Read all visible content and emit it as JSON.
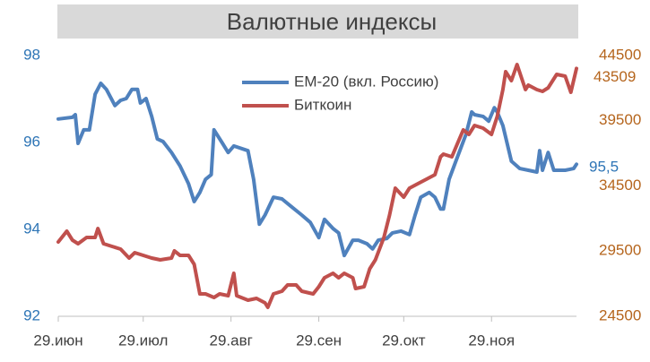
{
  "chart_data": {
    "type": "line",
    "title": "Валютные индексы",
    "xlim": [
      0,
      183
    ],
    "xticks": [
      {
        "value": 0,
        "label": "29.июн"
      },
      {
        "value": 30,
        "label": "29.июл"
      },
      {
        "value": 61,
        "label": "29.авг"
      },
      {
        "value": 92,
        "label": "29.сен"
      },
      {
        "value": 122,
        "label": "29.окт"
      },
      {
        "value": 153,
        "label": "29.ноя"
      }
    ],
    "ylim": [
      92,
      98
    ],
    "yticks": [
      92,
      94,
      96,
      98
    ],
    "y2lim": [
      24500,
      44500
    ],
    "y2ticks": [
      24500,
      29500,
      34500,
      39500,
      44500
    ],
    "grid": false,
    "legend": "top",
    "series": [
      {
        "name": "EM-20 (вкл. Россию)",
        "color": "#4f81bd",
        "end_label": "95,5",
        "x": [
          0,
          5,
          6,
          7,
          9,
          11,
          13,
          15,
          17,
          20,
          22,
          24,
          26,
          28,
          29,
          31,
          33,
          35,
          37,
          40,
          43,
          46,
          48,
          50,
          52,
          54,
          55,
          58,
          60,
          62,
          67,
          69,
          71,
          73,
          76,
          79,
          82,
          86,
          89,
          92,
          94,
          97,
          99,
          101,
          104,
          106,
          109,
          111,
          113,
          116,
          118,
          121,
          124,
          126,
          128,
          131,
          133,
          135,
          136,
          138,
          141,
          144,
          146,
          147,
          150,
          152,
          154,
          155,
          157,
          160,
          163,
          166,
          169,
          170,
          171,
          173,
          175,
          179,
          182,
          183
        ],
        "values": [
          96.54,
          96.58,
          96.64,
          95.98,
          96.29,
          96.29,
          97.11,
          97.36,
          97.22,
          96.85,
          96.97,
          97.01,
          97.22,
          97.22,
          96.91,
          97.01,
          96.6,
          96.08,
          96.02,
          95.77,
          95.46,
          95.05,
          94.64,
          94.85,
          95.15,
          95.26,
          96.29,
          95.98,
          95.77,
          95.92,
          95.81,
          95.15,
          94.12,
          94.33,
          94.74,
          94.7,
          94.54,
          94.33,
          94.16,
          93.81,
          94.23,
          94.02,
          93.92,
          93.4,
          93.75,
          93.75,
          93.67,
          93.55,
          93.75,
          93.79,
          93.92,
          93.96,
          93.88,
          94.33,
          94.74,
          94.85,
          94.74,
          94.47,
          94.47,
          95.15,
          95.67,
          96.19,
          96.7,
          96.64,
          96.6,
          96.49,
          96.8,
          96.7,
          96.39,
          95.57,
          95.4,
          95.36,
          95.32,
          95.81,
          95.36,
          95.77,
          95.36,
          95.36,
          95.4,
          95.5
        ]
      },
      {
        "name": "Биткоин",
        "color": "#c0504d",
        "axis": "y2",
        "end_label": "43509",
        "x": [
          0,
          3,
          5,
          7,
          10,
          13,
          14,
          16,
          19,
          22,
          25,
          27,
          30,
          33,
          36,
          40,
          41,
          43,
          46,
          48,
          50,
          52,
          55,
          57,
          60,
          62,
          63,
          67,
          70,
          73,
          74,
          76,
          79,
          81,
          84,
          86,
          90,
          92,
          94,
          97,
          99,
          101,
          104,
          105,
          108,
          110,
          112,
          115,
          117,
          119,
          122,
          124,
          127,
          130,
          133,
          135,
          136,
          139,
          143,
          145,
          147,
          150,
          153,
          155,
          157,
          158,
          160,
          162,
          165,
          166,
          169,
          171,
          173,
          176,
          179,
          181,
          183
        ],
        "values": [
          30204,
          31029,
          30342,
          30067,
          30548,
          30548,
          31235,
          30067,
          29861,
          29655,
          28967,
          29380,
          29174,
          28967,
          28830,
          28967,
          29517,
          29174,
          29174,
          28487,
          26219,
          26219,
          25944,
          26219,
          26081,
          27799,
          26081,
          25737,
          25875,
          25531,
          25188,
          26219,
          26425,
          26906,
          26906,
          26425,
          26219,
          26769,
          27456,
          27799,
          27456,
          27799,
          27456,
          26631,
          26769,
          28143,
          28830,
          30548,
          32266,
          34328,
          33641,
          34328,
          34672,
          35015,
          35359,
          36733,
          36940,
          36733,
          38795,
          38452,
          39139,
          38933,
          38452,
          39826,
          41888,
          43263,
          42576,
          43813,
          41888,
          42232,
          41888,
          41751,
          42026,
          43057,
          42919,
          41682,
          43509
        ]
      }
    ]
  }
}
